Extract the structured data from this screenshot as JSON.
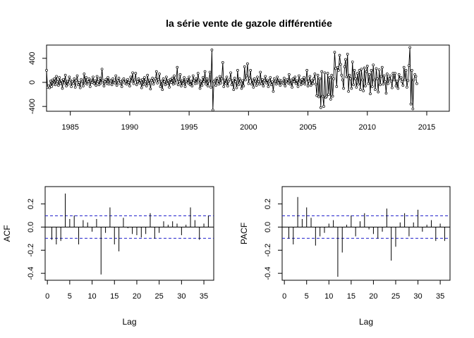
{
  "figure": {
    "title": "la série vente de gazole différentiée"
  },
  "chart_data": [
    {
      "type": "line",
      "title": "la série vente de gazole différentiée",
      "xlabel": "",
      "ylabel": "",
      "xlim": [
        1983.0,
        2016.9
      ],
      "ylim": [
        -480,
        620
      ],
      "xticks": [
        1985,
        1990,
        1995,
        2000,
        2005,
        2010,
        2015
      ],
      "yticks": [
        -400,
        0,
        400
      ],
      "x_start": 1983.0,
      "frequency": 12,
      "markers": "open-circle",
      "values": [
        200,
        -80,
        -60,
        -90,
        20,
        -70,
        40,
        -30,
        60,
        -40,
        100,
        10,
        -50,
        80,
        -20,
        30,
        -100,
        50,
        -10,
        120,
        -60,
        20,
        -30,
        90,
        40,
        -70,
        10,
        -20,
        60,
        -80,
        30,
        110,
        -40,
        0,
        -90,
        50,
        20,
        -60,
        140,
        -10,
        80,
        -30,
        10,
        60,
        -70,
        40,
        0,
        90,
        -20,
        30,
        -50,
        100,
        10,
        -40,
        70,
        -10,
        220,
        30,
        -60,
        10,
        50,
        -20,
        80,
        -30,
        40,
        20,
        -40,
        60,
        0,
        -10,
        110,
        -50,
        30,
        70,
        -20,
        10,
        -70,
        40,
        60,
        -10,
        20,
        -30,
        50,
        0,
        -60,
        90,
        20,
        160,
        -20,
        40,
        150,
        -40,
        10,
        60,
        -10,
        30,
        -90,
        50,
        -40,
        80,
        10,
        -60,
        120,
        -20,
        40,
        -110,
        30,
        70,
        -30,
        20,
        60,
        180,
        -10,
        50,
        140,
        -70,
        20,
        -120,
        60,
        10,
        -40,
        90,
        -20,
        30,
        -80,
        50,
        0,
        70,
        -30,
        110,
        -10,
        40,
        250,
        -40,
        10,
        130,
        -60,
        30,
        -20,
        80,
        -70,
        20,
        50,
        -10,
        90,
        -40,
        20,
        -60,
        110,
        30,
        -20,
        60,
        -10,
        150,
        40,
        -100,
        20,
        -50,
        80,
        10,
        180,
        -30,
        60,
        -60,
        20,
        170,
        -80,
        540,
        -460,
        10,
        40,
        -50,
        70,
        20,
        -30,
        100,
        -10,
        60,
        330,
        -70,
        40,
        -20,
        90,
        -60,
        20,
        50,
        160,
        -40,
        30,
        -120,
        70,
        10,
        -90,
        200,
        -40,
        60,
        20,
        -100,
        30,
        -60,
        260,
        40,
        110,
        310,
        -20,
        70,
        200,
        -30,
        40,
        -80,
        60,
        20,
        -50,
        90,
        10,
        -30,
        170,
        -20,
        50,
        -60,
        30,
        100,
        -10,
        40,
        -70,
        20,
        80,
        -40,
        10,
        -150,
        60,
        20,
        -30,
        90,
        -10,
        40,
        -50,
        30,
        0,
        -20,
        70,
        -60,
        20,
        50,
        -10,
        130,
        -30,
        40,
        -80,
        60,
        10,
        90,
        -20,
        30,
        -70,
        110,
        20,
        -40,
        50,
        -10,
        80,
        -30,
        40,
        200,
        -60,
        20,
        100,
        -50,
        30,
        -20,
        60,
        140,
        -30,
        -220,
        120,
        -240,
        60,
        -420,
        180,
        -230,
        -400,
        160,
        -250,
        -230,
        150,
        -200,
        80,
        -280,
        120,
        -230,
        60,
        500,
        230,
        -70,
        250,
        200,
        450,
        300,
        120,
        40,
        -100,
        260,
        380,
        90,
        470,
        -150,
        120,
        60,
        -100,
        340,
        -40,
        200,
        60,
        -80,
        150,
        -30,
        200,
        -120,
        220,
        40,
        -140,
        240,
        -60,
        180,
        270,
        -20,
        130,
        -190,
        200,
        -70,
        290,
        40,
        -120,
        230,
        60,
        -160,
        210,
        -40,
        100,
        250,
        -30,
        110,
        10,
        -180,
        140,
        -20,
        60,
        110,
        20,
        -90,
        150,
        40,
        150,
        -60,
        20,
        -100,
        130,
        60,
        80,
        10,
        -50,
        250,
        40,
        200,
        -80,
        30,
        280,
        580,
        -360,
        200,
        -440,
        40,
        130,
        100,
        -20
      ]
    },
    {
      "type": "bar",
      "title": "",
      "xlabel": "Lag",
      "ylabel": "ACF",
      "xlim": [
        -0.5,
        37.2
      ],
      "ylim": [
        -0.46,
        0.35
      ],
      "xticks": [
        0,
        5,
        10,
        15,
        20,
        25,
        30,
        35
      ],
      "yticks": [
        -0.4,
        -0.2,
        0.0,
        0.2
      ],
      "confidence_bound": 0.097,
      "lags": [
        1,
        2,
        3,
        4,
        5,
        6,
        7,
        8,
        9,
        10,
        11,
        12,
        13,
        14,
        15,
        16,
        17,
        18,
        19,
        20,
        21,
        22,
        23,
        24,
        25,
        26,
        27,
        28,
        29,
        30,
        31,
        32,
        33,
        34,
        35,
        36
      ],
      "values": [
        -0.11,
        -0.15,
        -0.12,
        0.29,
        0.07,
        0.1,
        -0.15,
        0.06,
        0.04,
        -0.04,
        0.07,
        -0.41,
        -0.05,
        0.17,
        -0.15,
        -0.21,
        0.08,
        -0.01,
        -0.06,
        -0.07,
        -0.09,
        -0.06,
        0.12,
        -0.1,
        -0.05,
        0.05,
        0.02,
        0.05,
        0.03,
        -0.07,
        0.02,
        0.17,
        0.06,
        -0.11,
        0.03,
        0.1
      ]
    },
    {
      "type": "bar",
      "title": "",
      "xlabel": "Lag",
      "ylabel": "PACF",
      "xlim": [
        -0.5,
        37.2
      ],
      "ylim": [
        -0.46,
        0.35
      ],
      "xticks": [
        0,
        5,
        10,
        15,
        20,
        25,
        30,
        35
      ],
      "yticks": [
        -0.4,
        -0.2,
        0.0,
        0.2
      ],
      "confidence_bound": 0.097,
      "lags": [
        1,
        2,
        3,
        4,
        5,
        6,
        7,
        8,
        9,
        10,
        11,
        12,
        13,
        14,
        15,
        16,
        17,
        18,
        19,
        20,
        21,
        22,
        23,
        24,
        25,
        26,
        27,
        28,
        29,
        30,
        31,
        32,
        33,
        34,
        35,
        36
      ],
      "values": [
        -0.1,
        -0.15,
        0.26,
        0.07,
        0.17,
        0.08,
        -0.16,
        -0.08,
        -0.05,
        0.03,
        0.06,
        -0.43,
        -0.22,
        0.02,
        0.1,
        -0.08,
        0.05,
        0.12,
        -0.02,
        -0.06,
        -0.1,
        -0.04,
        0.16,
        -0.29,
        -0.17,
        0.04,
        0.12,
        -0.08,
        0.04,
        0.15,
        -0.04,
        0.02,
        0.06,
        -0.12,
        0.03,
        -0.12
      ]
    }
  ]
}
